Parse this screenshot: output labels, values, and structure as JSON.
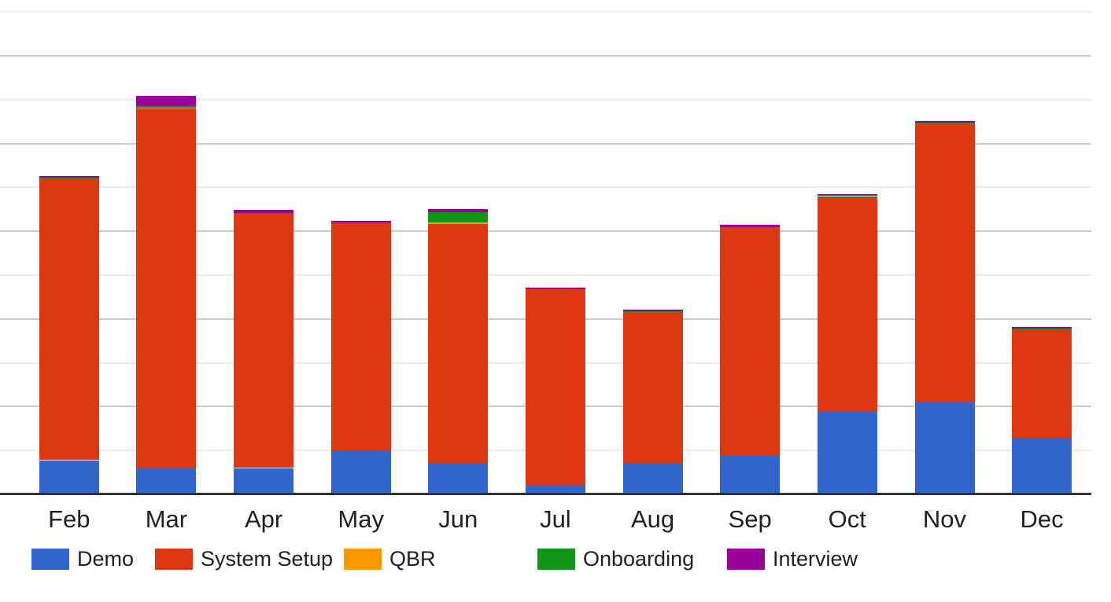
{
  "chart_data": {
    "type": "bar",
    "stacked": true,
    "title": "",
    "xlabel": "",
    "ylabel": "",
    "categories": [
      "Feb",
      "Mar",
      "Apr",
      "May",
      "Jun",
      "Jul",
      "Aug",
      "Sep",
      "Oct",
      "Nov",
      "Dec"
    ],
    "series": [
      {
        "name": "Demo",
        "color": "#3366CC",
        "values": [
          3.9,
          3.0,
          3.0,
          4.9,
          3.5,
          1.0,
          3.6,
          4.5,
          9.4,
          10.5,
          6.4
        ]
      },
      {
        "name": "System Setup",
        "color": "#DC3912",
        "values": [
          32.1,
          41.0,
          29.0,
          26.0,
          27.3,
          22.4,
          17.2,
          25.9,
          24.5,
          31.8,
          12.4
        ]
      },
      {
        "name": "QBR",
        "color": "#FF9900",
        "values": [
          0,
          0.1,
          0,
          0,
          0.2,
          0,
          0,
          0,
          0,
          0,
          0
        ]
      },
      {
        "name": "Onboarding",
        "color": "#109618",
        "values": [
          0.1,
          0.2,
          0.1,
          0.1,
          1.2,
          0,
          0.1,
          0.1,
          0.1,
          0.1,
          0.1
        ]
      },
      {
        "name": "Interview",
        "color": "#990099",
        "values": [
          0.2,
          1.1,
          0.3,
          0.2,
          0.3,
          0.2,
          0.2,
          0.2,
          0.2,
          0.2,
          0.2
        ]
      }
    ],
    "stack_totals": [
      36.3,
      45.4,
      32.4,
      31.2,
      32.5,
      23.6,
      21.1,
      30.7,
      34.2,
      42.6,
      19.1
    ],
    "ylim": [
      0,
      56.3
    ],
    "y_major_step": 10,
    "y_minor_step": 5,
    "y_tick_labels_visible": false,
    "grid": true,
    "legend_position": "bottom"
  },
  "axis_style": {
    "baseline_color": "#333333",
    "major_gridline_color": "#cccccc",
    "minor_gridline_color": "#ebebeb",
    "label_color": "#212121"
  }
}
